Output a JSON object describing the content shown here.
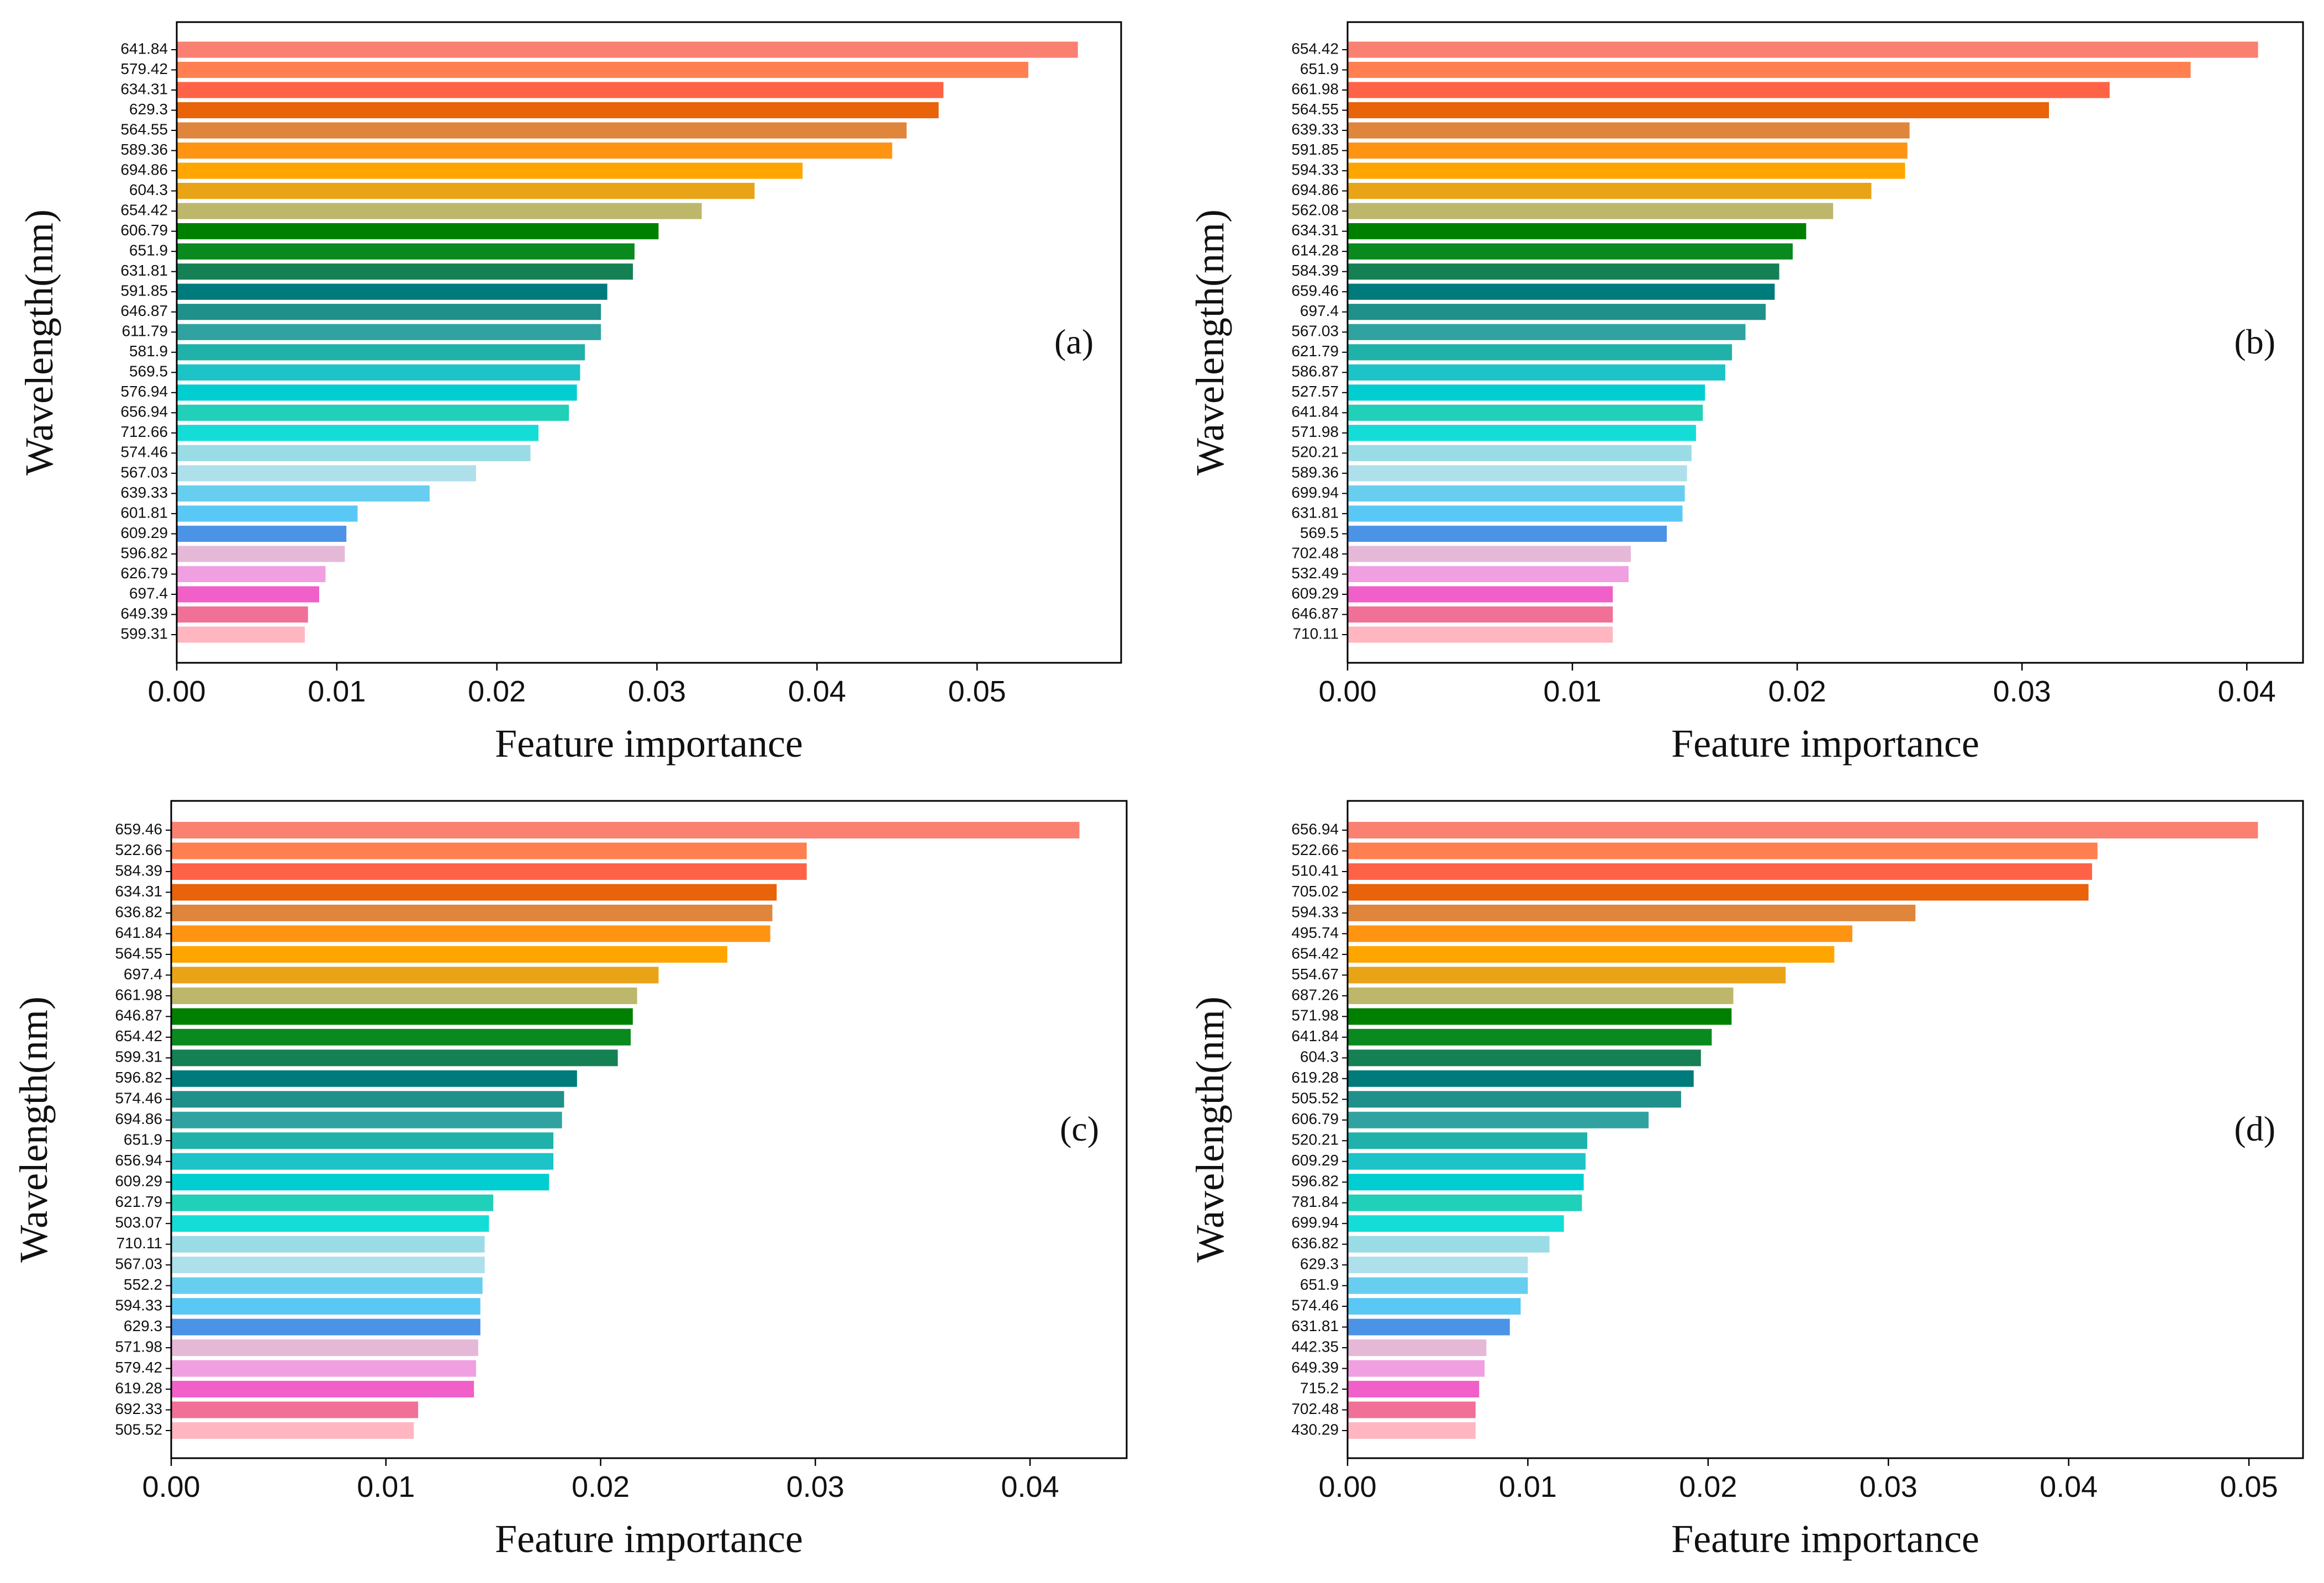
{
  "colors": [
    "#FA8072",
    "#FF7F50",
    "#FF6347",
    "#E8630A",
    "#E0853C",
    "#FF9412",
    "#FFA500",
    "#E8A317",
    "#BDB76B",
    "#008000",
    "#0A8A1E",
    "#168055",
    "#007B7B",
    "#20908A",
    "#30A3A0",
    "#20B2AA",
    "#1CC3C7",
    "#00CED1",
    "#20D0B8",
    "#14DDD8",
    "#9ADCE6",
    "#AEE0EB",
    "#67CEEF",
    "#5AC8F5",
    "#4B93E6",
    "#E6B8D8",
    "#F0A0E0",
    "#F060C8",
    "#F07098",
    "#FFB6C1"
  ],
  "chart_data": [
    {
      "type": "bar",
      "panel": "(a)",
      "orientation": "horizontal",
      "xlabel": "Feature importance",
      "ylabel": "Wavelength(nm)",
      "xlim": [
        0,
        0.059
      ],
      "xticks": [
        "0.00",
        "0.01",
        "0.02",
        "0.03",
        "0.04",
        "0.05"
      ],
      "categories": [
        "641.84",
        "579.42",
        "634.31",
        "629.3",
        "564.55",
        "589.36",
        "694.86",
        "604.3",
        "654.42",
        "606.79",
        "651.9",
        "631.81",
        "591.85",
        "646.87",
        "611.79",
        "581.9",
        "569.5",
        "576.94",
        "656.94",
        "712.66",
        "574.46",
        "567.03",
        "639.33",
        "601.81",
        "609.29",
        "596.82",
        "626.79",
        "697.4",
        "649.39",
        "599.31"
      ],
      "values": [
        0.0563,
        0.0532,
        0.0479,
        0.0476,
        0.0456,
        0.0447,
        0.0391,
        0.0361,
        0.0328,
        0.0301,
        0.0286,
        0.0285,
        0.0269,
        0.0265,
        0.0265,
        0.0255,
        0.0252,
        0.025,
        0.0245,
        0.0226,
        0.0221,
        0.0187,
        0.0158,
        0.0113,
        0.0106,
        0.0105,
        0.0093,
        0.0089,
        0.0082,
        0.008
      ]
    },
    {
      "type": "bar",
      "panel": "(b)",
      "orientation": "horizontal",
      "xlabel": "Feature importance",
      "ylabel": "Wavelength(nm)",
      "xlim": [
        0,
        0.0425
      ],
      "xticks": [
        "0.00",
        "0.01",
        "0.02",
        "0.03",
        "0.04"
      ],
      "categories": [
        "654.42",
        "651.9",
        "661.98",
        "564.55",
        "639.33",
        "591.85",
        "594.33",
        "694.86",
        "562.08",
        "634.31",
        "614.28",
        "584.39",
        "659.46",
        "697.4",
        "567.03",
        "621.79",
        "586.87",
        "527.57",
        "641.84",
        "571.98",
        "520.21",
        "589.36",
        "699.94",
        "631.81",
        "569.5",
        "702.48",
        "532.49",
        "609.29",
        "646.87",
        "710.11"
      ],
      "values": [
        0.0405,
        0.0375,
        0.0339,
        0.0312,
        0.025,
        0.0249,
        0.0248,
        0.0233,
        0.0216,
        0.0204,
        0.0198,
        0.0192,
        0.019,
        0.0186,
        0.0177,
        0.0171,
        0.0168,
        0.0159,
        0.0158,
        0.0155,
        0.0153,
        0.0151,
        0.015,
        0.0149,
        0.0142,
        0.0126,
        0.0125,
        0.0118,
        0.0118,
        0.0118
      ]
    },
    {
      "type": "bar",
      "panel": "(c)",
      "orientation": "horizontal",
      "xlabel": "Feature importance",
      "ylabel": "Wavelength(nm)",
      "xlim": [
        0,
        0.0445
      ],
      "xticks": [
        "0.00",
        "0.01",
        "0.02",
        "0.03",
        "0.04"
      ],
      "categories": [
        "659.46",
        "522.66",
        "584.39",
        "634.31",
        "636.82",
        "641.84",
        "564.55",
        "697.4",
        "661.98",
        "646.87",
        "654.42",
        "599.31",
        "596.82",
        "574.46",
        "694.86",
        "651.9",
        "656.94",
        "609.29",
        "621.79",
        "503.07",
        "710.11",
        "567.03",
        "552.2",
        "594.33",
        "629.3",
        "571.98",
        "579.42",
        "619.28",
        "692.33",
        "505.52"
      ],
      "values": [
        0.0423,
        0.0296,
        0.0296,
        0.0282,
        0.028,
        0.0279,
        0.0259,
        0.0227,
        0.0217,
        0.0215,
        0.0214,
        0.0208,
        0.0189,
        0.0183,
        0.0182,
        0.0178,
        0.0178,
        0.0176,
        0.015,
        0.0148,
        0.0146,
        0.0146,
        0.0145,
        0.0144,
        0.0144,
        0.0143,
        0.0142,
        0.0141,
        0.0115,
        0.0113
      ]
    },
    {
      "type": "bar",
      "panel": "(d)",
      "orientation": "horizontal",
      "xlabel": "Feature importance",
      "ylabel": "Wavelength(nm)",
      "xlim": [
        0,
        0.053
      ],
      "xticks": [
        "0.00",
        "0.01",
        "0.02",
        "0.03",
        "0.04",
        "0.05"
      ],
      "categories": [
        "656.94",
        "522.66",
        "510.41",
        "705.02",
        "594.33",
        "495.74",
        "654.42",
        "554.67",
        "687.26",
        "571.98",
        "641.84",
        "604.3",
        "619.28",
        "505.52",
        "606.79",
        "520.21",
        "609.29",
        "596.82",
        "781.84",
        "699.94",
        "636.82",
        "629.3",
        "651.9",
        "574.46",
        "631.81",
        "442.35",
        "649.39",
        "715.2",
        "702.48",
        "430.29"
      ],
      "values": [
        0.0505,
        0.0416,
        0.0413,
        0.0411,
        0.0315,
        0.028,
        0.027,
        0.0243,
        0.0214,
        0.0213,
        0.0202,
        0.0196,
        0.0192,
        0.0185,
        0.0167,
        0.0133,
        0.0132,
        0.0131,
        0.013,
        0.012,
        0.0112,
        0.01,
        0.01,
        0.0096,
        0.009,
        0.0077,
        0.0076,
        0.0073,
        0.0071,
        0.0071
      ]
    }
  ]
}
